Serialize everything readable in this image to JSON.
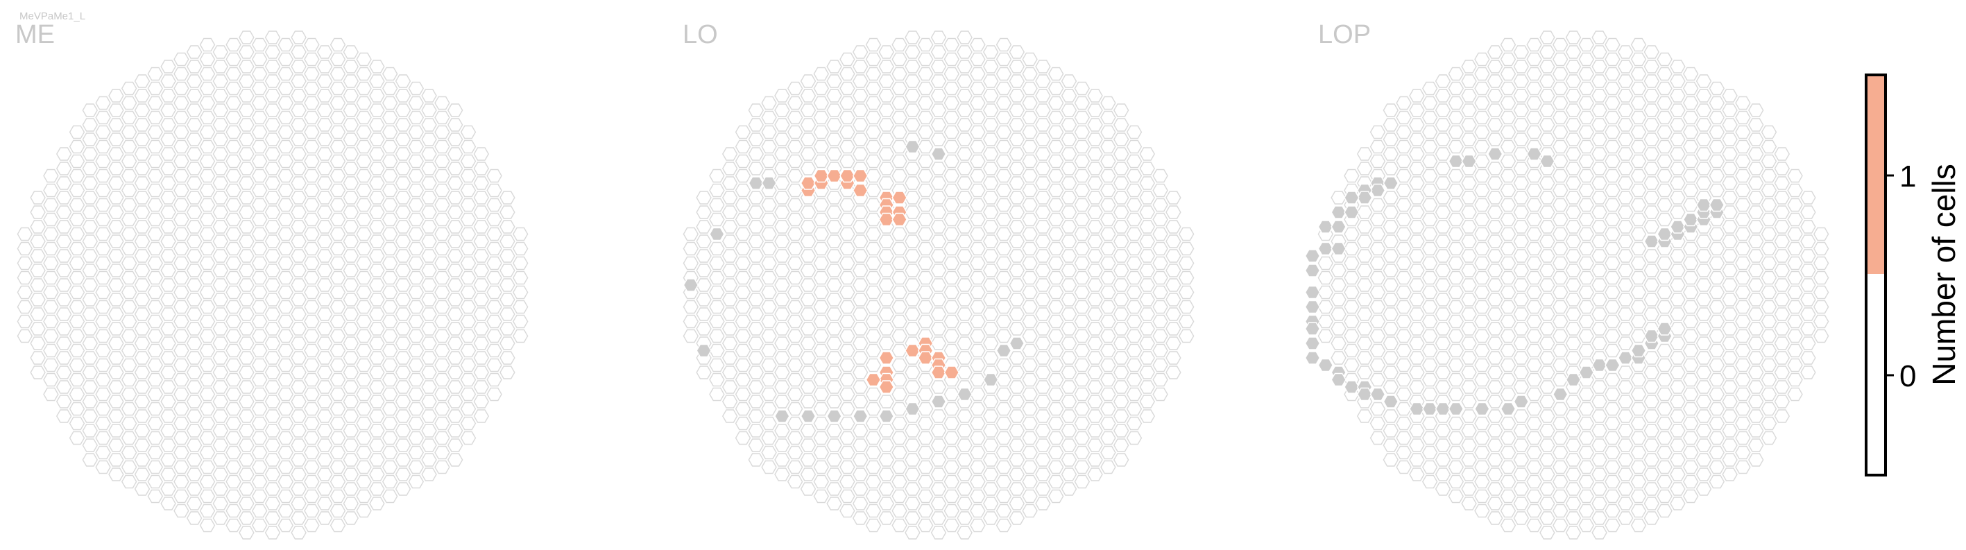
{
  "cell_type": "MeVPaMe1_L",
  "chart_data": [
    {
      "type": "heatmap",
      "title": "ME",
      "grid": "hexagonal columns",
      "counts_one": [],
      "outside": []
    },
    {
      "type": "heatmap",
      "title": "LO",
      "grid": "hexagonal columns",
      "counts_one": [
        [
          -10,
          13
        ],
        [
          -10,
          14
        ],
        [
          -9,
          14
        ],
        [
          -9,
          15
        ],
        [
          -8,
          15
        ],
        [
          -7,
          14
        ],
        [
          -7,
          15
        ],
        [
          -6,
          15
        ],
        [
          -6,
          13
        ],
        [
          -4,
          12
        ],
        [
          -4,
          11
        ],
        [
          -4,
          10
        ],
        [
          -4,
          9
        ],
        [
          -3,
          12
        ],
        [
          -3,
          10
        ],
        [
          -3,
          9
        ],
        [
          -2,
          -9
        ],
        [
          -1,
          -8
        ],
        [
          -1,
          -9
        ],
        [
          -1,
          -10
        ],
        [
          0,
          -10
        ],
        [
          0,
          -11
        ],
        [
          0,
          -12
        ],
        [
          1,
          -12
        ],
        [
          -4,
          -10
        ],
        [
          -4,
          -12
        ],
        [
          -4,
          -13
        ],
        [
          -4,
          -14
        ],
        [
          -5,
          -13
        ]
      ],
      "outside": [
        [
          -2,
          19
        ],
        [
          0,
          18
        ],
        [
          -14,
          14
        ],
        [
          -13,
          14
        ],
        [
          -17,
          7
        ],
        [
          -19,
          0
        ],
        [
          -18,
          -9
        ],
        [
          -12,
          -18
        ],
        [
          -10,
          -18
        ],
        [
          -8,
          -18
        ],
        [
          -6,
          -18
        ],
        [
          -4,
          -18
        ],
        [
          -2,
          -17
        ],
        [
          0,
          -16
        ],
        [
          2,
          -15
        ],
        [
          4,
          -13
        ],
        [
          5,
          -9
        ],
        [
          6,
          -8
        ]
      ],
      "colorscale": {
        "0": "#ffffff",
        "1": "#f6ad91",
        "outside": "#cccccc"
      }
    },
    {
      "type": "heatmap",
      "title": "LOP",
      "grid": "hexagonal columns",
      "counts_one": [],
      "outside": [
        [
          -9,
          17
        ],
        [
          -8,
          17
        ],
        [
          -6,
          18
        ],
        [
          -3,
          18
        ],
        [
          -2,
          17
        ],
        [
          -15,
          14
        ],
        [
          -14,
          14
        ],
        [
          -15,
          13
        ],
        [
          -16,
          13
        ],
        [
          -16,
          12
        ],
        [
          -17,
          12
        ],
        [
          -18,
          10
        ],
        [
          -17,
          10
        ],
        [
          -19,
          8
        ],
        [
          -18,
          8
        ],
        [
          -19,
          5
        ],
        [
          -18,
          5
        ],
        [
          -20,
          4
        ],
        [
          -20,
          2
        ],
        [
          -20,
          -1
        ],
        [
          -20,
          -3
        ],
        [
          -20,
          -5
        ],
        [
          -20,
          -6
        ],
        [
          -20,
          -8
        ],
        [
          -20,
          -10
        ],
        [
          -19,
          -11
        ],
        [
          -18,
          -12
        ],
        [
          -18,
          -13
        ],
        [
          -17,
          -14
        ],
        [
          -16,
          -14
        ],
        [
          -16,
          -15
        ],
        [
          -15,
          -15
        ],
        [
          -14,
          -16
        ],
        [
          -12,
          -17
        ],
        [
          -11,
          -17
        ],
        [
          -10,
          -17
        ],
        [
          -9,
          -17
        ],
        [
          -7,
          -17
        ],
        [
          -5,
          -17
        ],
        [
          -4,
          -16
        ],
        [
          -1,
          -15
        ],
        [
          0,
          -13
        ],
        [
          1,
          -12
        ],
        [
          2,
          -11
        ],
        [
          3,
          -11
        ],
        [
          4,
          -10
        ],
        [
          5,
          -10
        ],
        [
          5,
          -9
        ],
        [
          6,
          -8
        ],
        [
          6,
          -7
        ],
        [
          7,
          -7
        ],
        [
          7,
          -6
        ],
        [
          6,
          6
        ],
        [
          7,
          6
        ],
        [
          7,
          7
        ],
        [
          8,
          7
        ],
        [
          8,
          8
        ],
        [
          9,
          8
        ],
        [
          9,
          9
        ],
        [
          10,
          9
        ],
        [
          10,
          10
        ],
        [
          11,
          10
        ],
        [
          10,
          11
        ],
        [
          11,
          11
        ]
      ],
      "colorscale": {
        "0": "#ffffff",
        "1": "#f6ad91",
        "outside": "#cccccc"
      }
    }
  ],
  "colorbar": {
    "label": "Number of cells",
    "ticks": [
      "0",
      "1"
    ],
    "colors": [
      "#ffffff",
      "#f6ad91"
    ]
  }
}
